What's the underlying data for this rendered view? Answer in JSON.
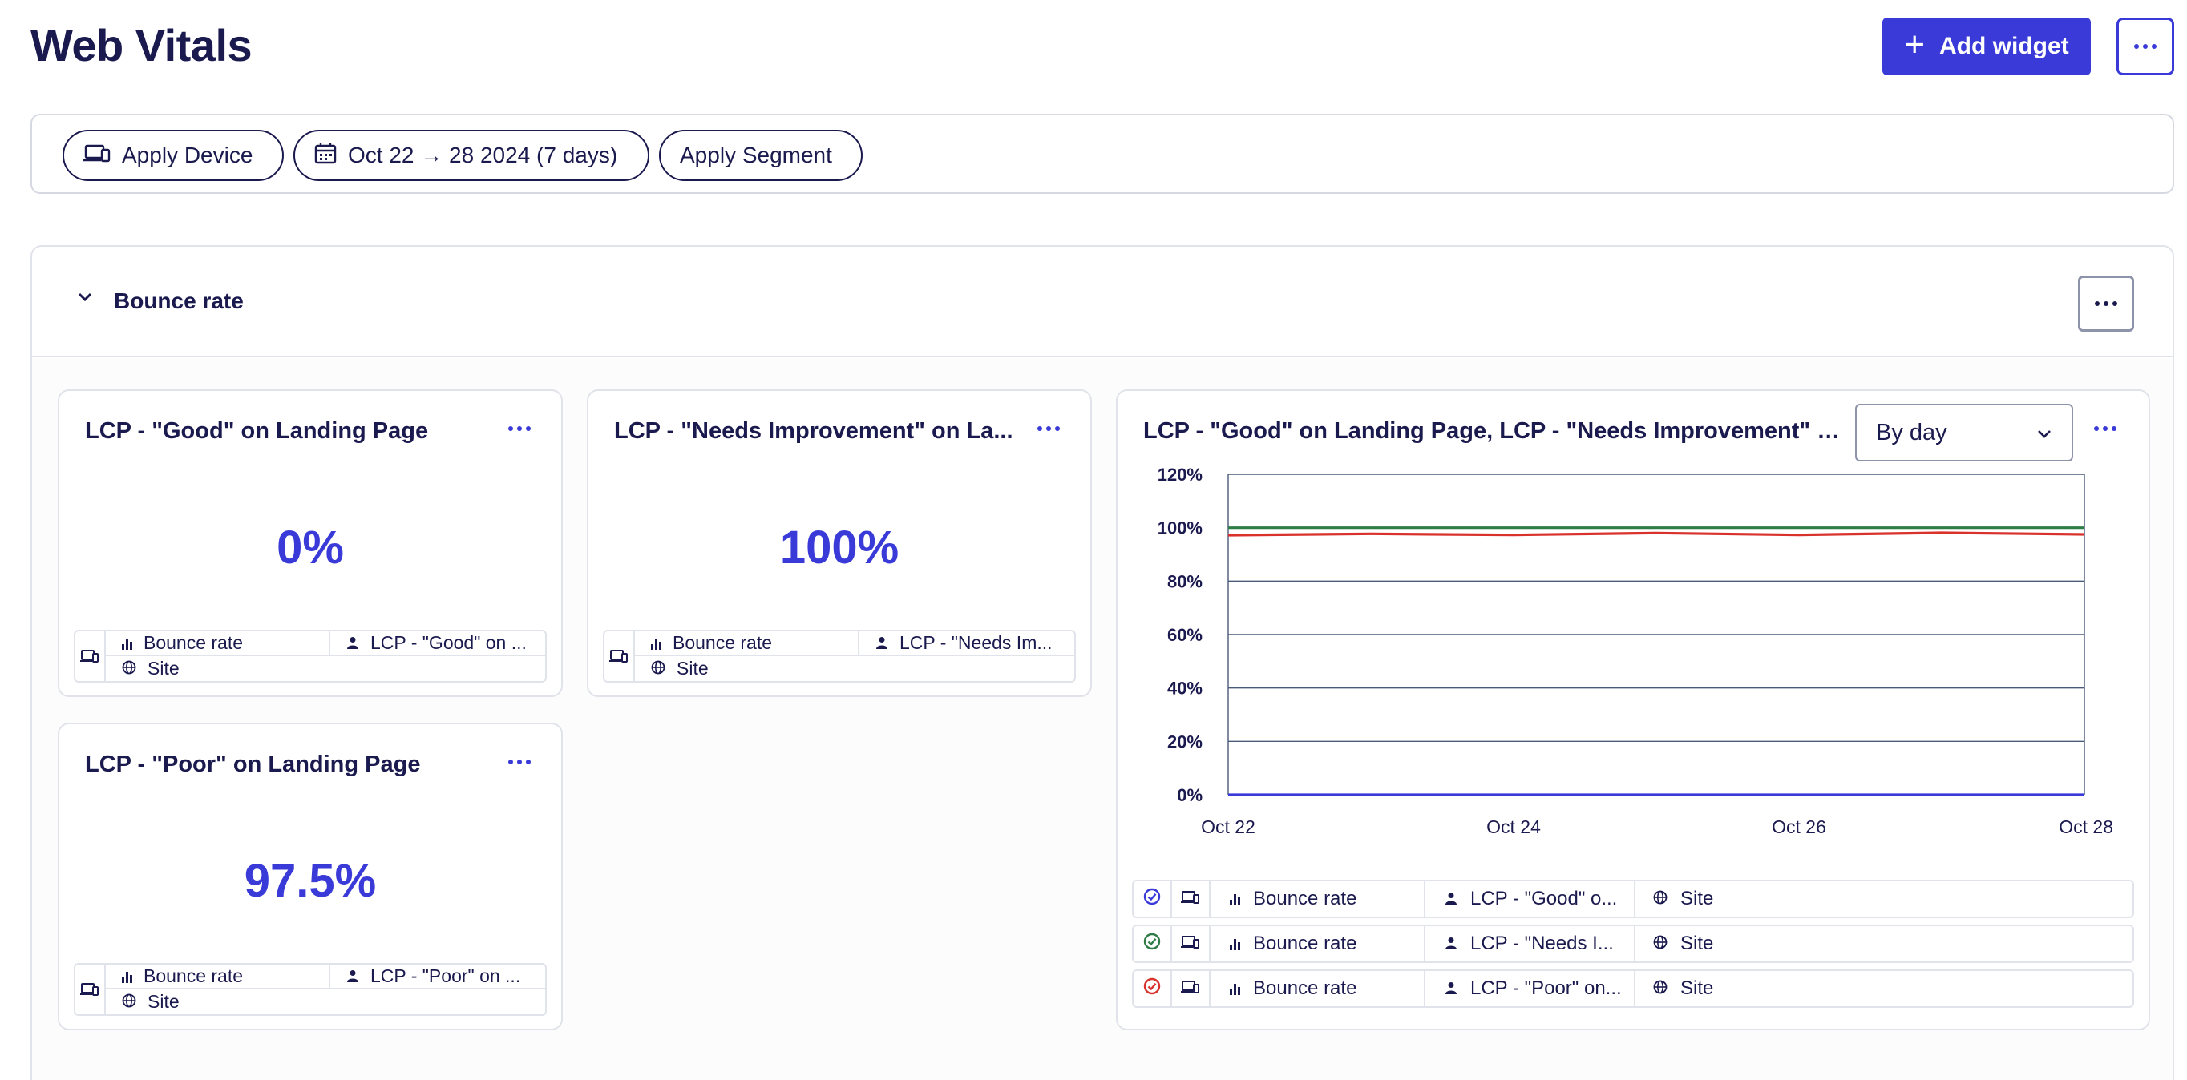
{
  "page": {
    "title": "Web Vitals"
  },
  "header": {
    "add_widget_label": "Add widget"
  },
  "filters": {
    "device_label": "Apply Device",
    "date_label": "Oct 22 → 28 2024 (7 days)",
    "segment_label": "Apply Segment"
  },
  "section": {
    "title": "Bounce rate"
  },
  "cards": [
    {
      "title": "LCP - \"Good\" on Landing Page",
      "value": "0%",
      "metric": "Bounce rate",
      "segment": "LCP - \"Good\" on ...",
      "scope": "Site"
    },
    {
      "title": "LCP - \"Needs Improvement\" on La...",
      "value": "100%",
      "metric": "Bounce rate",
      "segment": "LCP - \"Needs Im...",
      "scope": "Site"
    },
    {
      "title": "LCP - \"Poor\" on Landing Page",
      "value": "97.5%",
      "metric": "Bounce rate",
      "segment": "LCP - \"Poor\" on ...",
      "scope": "Site"
    }
  ],
  "chart_card": {
    "title": "LCP - \"Good\" on Landing Page, LCP - \"Needs Improvement\" on...",
    "granularity": "By day",
    "legend": [
      {
        "metric": "Bounce rate",
        "segment": "LCP - \"Good\" o...",
        "scope": "Site",
        "color": "#3a3ad8"
      },
      {
        "metric": "Bounce rate",
        "segment": "LCP - \"Needs I...",
        "scope": "Site",
        "color": "#2e7d46"
      },
      {
        "metric": "Bounce rate",
        "segment": "LCP - \"Poor\" on...",
        "scope": "Site",
        "color": "#d9312b"
      }
    ]
  },
  "chart_data": {
    "type": "line",
    "x": [
      "Oct 22",
      "Oct 23",
      "Oct 24",
      "Oct 25",
      "Oct 26",
      "Oct 27",
      "Oct 28"
    ],
    "x_tick_labels": [
      "Oct 22",
      "Oct 24",
      "Oct 26",
      "Oct 28"
    ],
    "y_tick_labels": [
      "0%",
      "20%",
      "40%",
      "60%",
      "80%",
      "100%",
      "120%"
    ],
    "ylim": [
      0,
      120
    ],
    "grid": true,
    "series": [
      {
        "values": [
          0,
          0,
          0,
          0,
          0,
          0,
          0
        ],
        "color": "#3a3ad8"
      },
      {
        "values": [
          100,
          100,
          100,
          100,
          100,
          100,
          100
        ],
        "color": "#2e7d46"
      },
      {
        "values": [
          97.2,
          97.7,
          97.3,
          98.0,
          97.3,
          98.1,
          97.5
        ],
        "color": "#d9312b"
      }
    ]
  },
  "colors": {
    "accent": "#3a3ad8",
    "text": "#1b1a4f",
    "border": "#e1e3ea"
  }
}
